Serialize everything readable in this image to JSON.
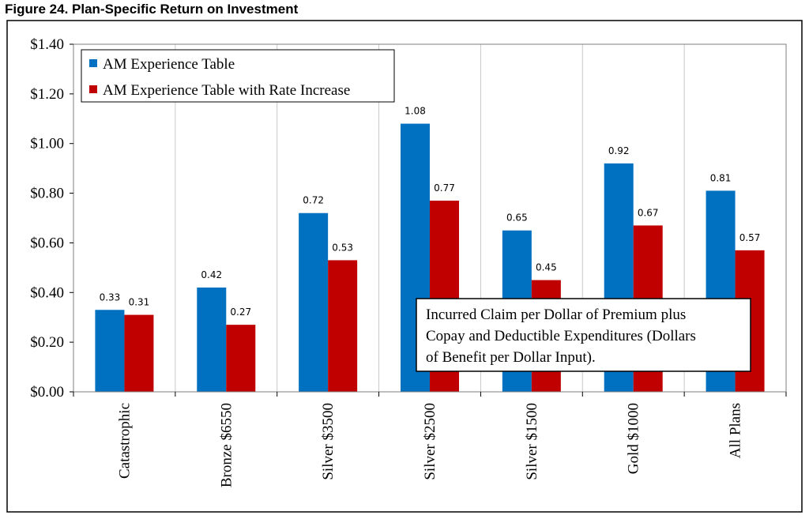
{
  "figure_title": "Figure 24.  Plan-Specific Return on Investment",
  "chart_data": {
    "type": "bar",
    "title": "",
    "xlabel": "",
    "ylabel": "",
    "ylim": [
      0,
      1.4
    ],
    "y_ticks": [
      "$0.00",
      "$0.20",
      "$0.40",
      "$0.60",
      "$0.80",
      "$1.00",
      "$1.20",
      "$1.40"
    ],
    "grid": "vertical lines between categories",
    "legend_position": "top-left",
    "categories": [
      "Catastrophic",
      "Bronze $6550",
      "Silver $3500",
      "Silver $2500",
      "Silver $1500",
      "Gold $1000",
      "All Plans"
    ],
    "series": [
      {
        "name": "AM Experience Table",
        "color": "#0070C0",
        "values": [
          0.33,
          0.42,
          0.72,
          1.08,
          0.65,
          0.92,
          0.81
        ],
        "labels": [
          "0.33",
          "0.42",
          "0.72",
          "1.08",
          "0.65",
          "0.92",
          "0.81"
        ]
      },
      {
        "name": "AM Experience Table with Rate Increase",
        "color": "#C00000",
        "values": [
          0.31,
          0.27,
          0.53,
          0.77,
          0.45,
          0.67,
          0.57
        ],
        "labels": [
          "0.31",
          "0.27",
          "0.53",
          "0.77",
          "0.45",
          "0.67",
          "0.57"
        ]
      }
    ],
    "annotation": [
      "Incurred Claim per Dollar of Premium plus",
      "Copay and Deductible Expenditures (Dollars",
      "of Benefit per Dollar Input)."
    ]
  }
}
